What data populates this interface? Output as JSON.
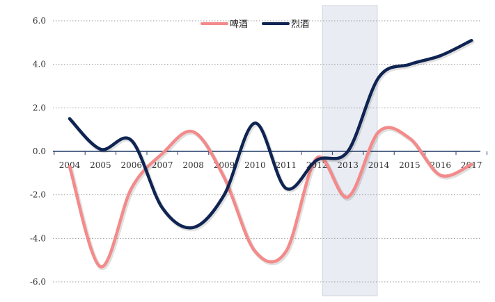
{
  "chart_data": {
    "type": "line",
    "title": "",
    "xlabel": "",
    "ylabel": "",
    "categories": [
      "2004",
      "2005",
      "2006",
      "2007",
      "2008",
      "2009",
      "2010",
      "2011",
      "2012",
      "2013",
      "2014",
      "2015",
      "2016",
      "2017"
    ],
    "ylim": [
      -6.0,
      6.0
    ],
    "yticks": [
      "6.0",
      "4.0",
      "2.0",
      "0.0",
      "-2.0",
      "-4.0",
      "-6.0"
    ],
    "grid": "horizontal-dotted",
    "legend_position": "top-center",
    "highlight_range": [
      "2012",
      "2014"
    ],
    "series": [
      {
        "name": "啤酒",
        "color": "#F48A8A",
        "values": [
          -0.7,
          -5.3,
          -1.7,
          -0.1,
          0.9,
          -1.2,
          -4.6,
          -4.6,
          -0.3,
          -2.1,
          0.9,
          0.6,
          -1.1,
          -0.6
        ]
      },
      {
        "name": "烈酒",
        "color": "#0F2452",
        "values": [
          1.5,
          0.1,
          0.5,
          -2.6,
          -3.5,
          -2.0,
          1.3,
          -1.7,
          -0.4,
          0.0,
          3.4,
          4.0,
          4.4,
          5.1
        ]
      }
    ],
    "colors": {
      "highlight": "#E6E9F0",
      "highlight_border": "#C9CEDA",
      "axis": "#1F3A66",
      "grid": "#9A9A9A"
    }
  }
}
